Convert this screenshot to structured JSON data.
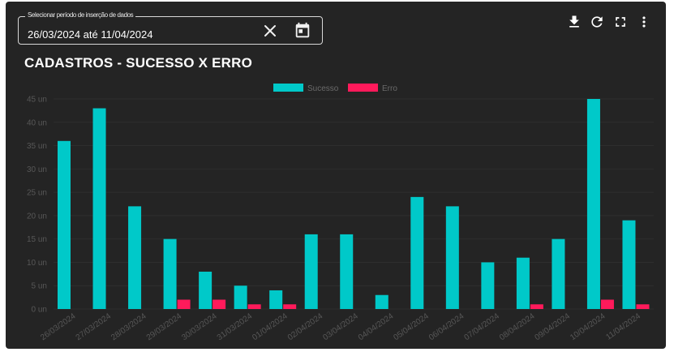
{
  "date_filter": {
    "label": "Selecionar período de inserção de dados",
    "value": "26/03/2024 até 11/04/2024"
  },
  "toolbar": {
    "icons": [
      "download-icon",
      "refresh-icon",
      "fullscreen-icon",
      "more-vert-icon"
    ]
  },
  "colors": {
    "background": "#242424",
    "success": "#00c9c9",
    "error": "#ff1a5b",
    "grid": "#2e2e2e",
    "axis_text": "#575757"
  },
  "chart_data": {
    "type": "bar",
    "title": "CADASTROS - SUCESSO X ERRO",
    "categories": [
      "26/03/2024",
      "27/03/2024",
      "28/03/2024",
      "29/03/2024",
      "30/03/2024",
      "31/03/2024",
      "01/04/2024",
      "02/04/2024",
      "03/04/2024",
      "04/04/2024",
      "05/04/2024",
      "06/04/2024",
      "07/04/2024",
      "08/04/2024",
      "09/04/2024",
      "10/04/2024",
      "11/04/2024"
    ],
    "series": [
      {
        "name": "Sucesso",
        "color": "#00c9c9",
        "values": [
          36,
          43,
          22,
          15,
          8,
          5,
          4,
          16,
          16,
          3,
          24,
          22,
          10,
          11,
          15,
          45,
          19
        ]
      },
      {
        "name": "Erro",
        "color": "#ff1a5b",
        "values": [
          0,
          0,
          0,
          2,
          2,
          1,
          1,
          0,
          0,
          0,
          0,
          0,
          0,
          1,
          0,
          2,
          1
        ]
      }
    ],
    "y_ticks": [
      "0 un",
      "5 un",
      "10 un",
      "15 un",
      "20 un",
      "25 un",
      "30 un",
      "35 un",
      "40 un",
      "45 un"
    ],
    "ylim": [
      0,
      45
    ],
    "grid": true,
    "legend_position": "top-center"
  }
}
